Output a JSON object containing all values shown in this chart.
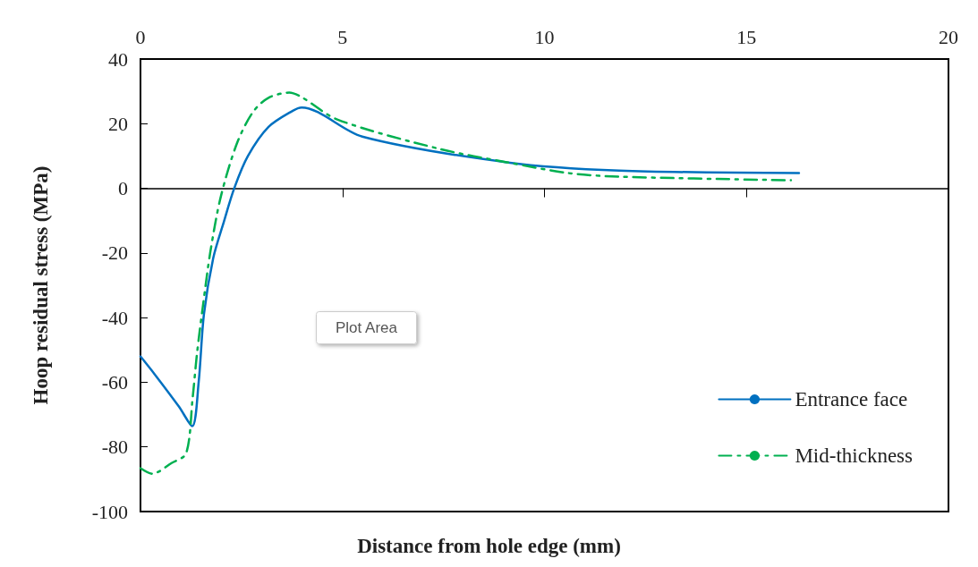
{
  "chart_data": {
    "type": "line",
    "xlabel": "Distance from hole edge (mm)",
    "ylabel": "Hoop residual stress (MPa)",
    "xlim": [
      0,
      20
    ],
    "xticks": [
      0,
      5,
      10,
      15,
      20
    ],
    "ylim": [
      -100,
      40
    ],
    "yticks": [
      -100,
      -80,
      -60,
      -40,
      -20,
      0,
      20,
      40
    ],
    "legend": "bottom right",
    "marker": "none",
    "annotations": [
      "Plot Area"
    ],
    "series": [
      {
        "name": "Entrance face",
        "color": "#0070c0",
        "line_style": "solid",
        "x": [
          0,
          0.35,
          0.95,
          1.28,
          1.44,
          1.57,
          1.8,
          2.06,
          2.32,
          2.66,
          3.17,
          3.77,
          3.99,
          5.49,
          9.1,
          11.85,
          16.3
        ],
        "values": [
          -52,
          -57.5,
          -67.5,
          -73.6,
          -60,
          -39,
          -21.6,
          -10.5,
          0,
          10,
          19,
          24,
          25,
          16,
          8,
          5.5,
          4.7
        ]
      },
      {
        "name": "Mid-thickness",
        "color": "#00b050",
        "line_style": "dashed",
        "x": [
          0,
          0.29,
          0.77,
          1.13,
          1.29,
          1.4,
          1.55,
          1.73,
          1.99,
          2.39,
          2.79,
          3.17,
          3.68,
          3.99,
          4.87,
          7.4,
          9.1,
          10.6,
          11.85,
          16.1
        ],
        "values": [
          -86.6,
          -88.3,
          -85,
          -82,
          -65,
          -51,
          -36,
          -19.6,
          -2.5,
          14,
          23.7,
          28,
          29.6,
          28.2,
          21.3,
          12.2,
          8,
          4.7,
          3.6,
          2.5
        ]
      }
    ]
  }
}
